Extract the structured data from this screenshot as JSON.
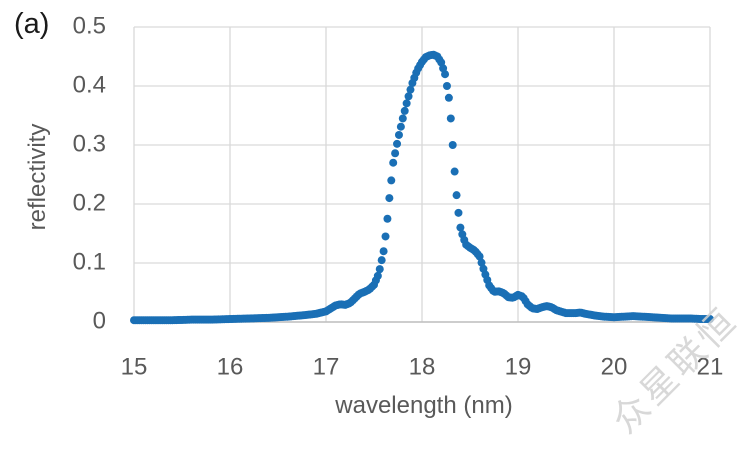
{
  "figure_label": "(a)",
  "watermark": "众星联恒",
  "colors": {
    "marker": "#1a6fb5",
    "grid": "#d9d9d9",
    "axis_line": "#bfbfbf",
    "tick_text": "#595959"
  },
  "chart_data": {
    "type": "scatter",
    "title": "",
    "xlabel": "wavelength (nm)",
    "ylabel": "reflectivity",
    "xlim": [
      15,
      21
    ],
    "ylim": [
      0,
      0.5
    ],
    "x_ticks": [
      15,
      16,
      17,
      18,
      19,
      20,
      21
    ],
    "y_ticks": [
      0,
      0.1,
      0.2,
      0.3,
      0.4,
      0.5
    ],
    "grid": true,
    "legend": "none",
    "marker_radius": 4,
    "marker_step_nm": 0.02,
    "series": [
      {
        "name": "reflectivity",
        "peak": {
          "wavelength_nm": 18.12,
          "reflectivity": 0.453
        },
        "anchors": [
          [
            15.0,
            0.003
          ],
          [
            15.2,
            0.003
          ],
          [
            15.4,
            0.003
          ],
          [
            15.6,
            0.004
          ],
          [
            15.8,
            0.004
          ],
          [
            16.0,
            0.005
          ],
          [
            16.2,
            0.006
          ],
          [
            16.4,
            0.007
          ],
          [
            16.6,
            0.009
          ],
          [
            16.8,
            0.012
          ],
          [
            16.9,
            0.014
          ],
          [
            17.0,
            0.018
          ],
          [
            17.05,
            0.023
          ],
          [
            17.1,
            0.028
          ],
          [
            17.15,
            0.03
          ],
          [
            17.2,
            0.029
          ],
          [
            17.25,
            0.032
          ],
          [
            17.3,
            0.04
          ],
          [
            17.35,
            0.048
          ],
          [
            17.4,
            0.051
          ],
          [
            17.45,
            0.055
          ],
          [
            17.5,
            0.063
          ],
          [
            17.55,
            0.082
          ],
          [
            17.6,
            0.12
          ],
          [
            17.62,
            0.145
          ],
          [
            17.64,
            0.175
          ],
          [
            17.66,
            0.21
          ],
          [
            17.68,
            0.24
          ],
          [
            17.7,
            0.27
          ],
          [
            17.75,
            0.31
          ],
          [
            17.8,
            0.345
          ],
          [
            17.85,
            0.377
          ],
          [
            17.9,
            0.405
          ],
          [
            17.95,
            0.427
          ],
          [
            18.0,
            0.441
          ],
          [
            18.04,
            0.449
          ],
          [
            18.08,
            0.452
          ],
          [
            18.12,
            0.453
          ],
          [
            18.16,
            0.45
          ],
          [
            18.2,
            0.44
          ],
          [
            18.24,
            0.42
          ],
          [
            18.28,
            0.38
          ],
          [
            18.3,
            0.345
          ],
          [
            18.32,
            0.3
          ],
          [
            18.34,
            0.255
          ],
          [
            18.36,
            0.215
          ],
          [
            18.38,
            0.185
          ],
          [
            18.4,
            0.16
          ],
          [
            18.43,
            0.143
          ],
          [
            18.46,
            0.131
          ],
          [
            18.5,
            0.126
          ],
          [
            18.55,
            0.121
          ],
          [
            18.6,
            0.111
          ],
          [
            18.65,
            0.085
          ],
          [
            18.7,
            0.062
          ],
          [
            18.75,
            0.051
          ],
          [
            18.8,
            0.052
          ],
          [
            18.85,
            0.049
          ],
          [
            18.9,
            0.042
          ],
          [
            18.95,
            0.041
          ],
          [
            19.0,
            0.046
          ],
          [
            19.05,
            0.043
          ],
          [
            19.1,
            0.03
          ],
          [
            19.15,
            0.023
          ],
          [
            19.2,
            0.022
          ],
          [
            19.25,
            0.025
          ],
          [
            19.3,
            0.027
          ],
          [
            19.35,
            0.025
          ],
          [
            19.4,
            0.02
          ],
          [
            19.5,
            0.015
          ],
          [
            19.6,
            0.015
          ],
          [
            19.65,
            0.016
          ],
          [
            19.7,
            0.014
          ],
          [
            19.8,
            0.011
          ],
          [
            19.9,
            0.009
          ],
          [
            20.0,
            0.008
          ],
          [
            20.1,
            0.009
          ],
          [
            20.2,
            0.01
          ],
          [
            20.3,
            0.009
          ],
          [
            20.4,
            0.008
          ],
          [
            20.5,
            0.007
          ],
          [
            20.6,
            0.006
          ],
          [
            20.7,
            0.006
          ],
          [
            20.8,
            0.006
          ],
          [
            20.9,
            0.005
          ],
          [
            21.0,
            0.005
          ]
        ]
      }
    ]
  }
}
